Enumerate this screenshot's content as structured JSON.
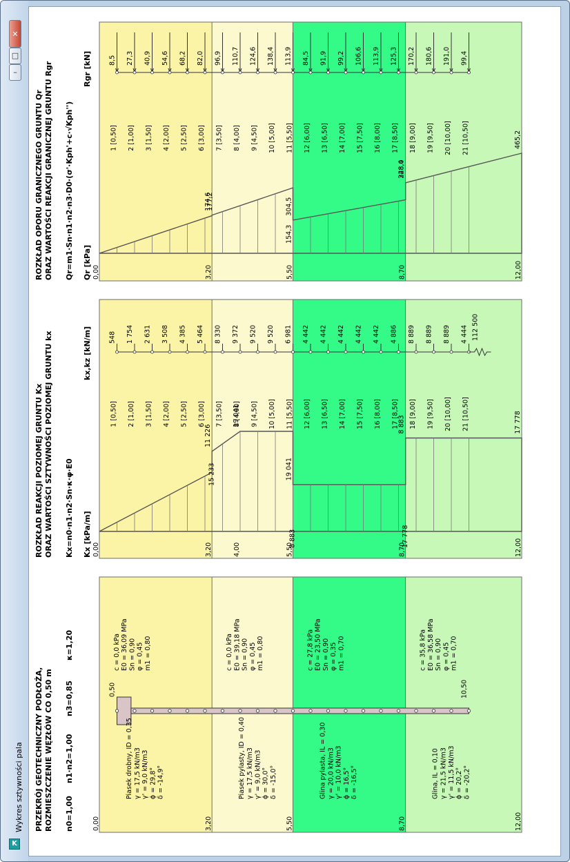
{
  "window": {
    "title": "Wykres sztywności pala",
    "icon_letter": "K"
  },
  "headers": {
    "h1_line1": "PRZEKRÓJ GEOTECHNICZNY PODŁOŻA,",
    "h1_line2": "ROZMIESZCZENIE WĘZŁÓW CO 0,50 m",
    "factors": [
      "n0=1,00",
      "n1·n2=1,00",
      "n3=0,85",
      "κ=1,20"
    ],
    "h2_line1": "ROZKŁAD REAKCJI POZIOMEJ GRUNTU Kx",
    "h2_line2": "ORAZ WARTOŚCI SZTYWNOŚCI POZIOMEJ GRUNTU kx",
    "h2_formula": "Kx=n0·n1·n2·Sn·κ·φ·E0",
    "h2_unit_left": "Kx [kPa/m]",
    "h2_unit_right": "kx,kz [kN/m]",
    "h3_line1": "ROZKŁAD OPORU GRANICZNEGO GRUNTU Qr",
    "h3_line2": "ORAZ WARTOŚCI REAKCJI GRANICZNEJ GRUNTU Rgr",
    "h3_formula": "Qr=m1·Sn·n1·n2·n3·D0·(σ'·Kph'+c·√Kph'')",
    "h3_unit_left": "Qr [kPa]",
    "h3_unit_right": "Rgr [kN]"
  },
  "colors": {
    "layer1": "#fbf3a6",
    "layer2": "#fdf9cf",
    "layer3": "#34fb87",
    "layer4": "#c8f8b8",
    "pile": "#d9c5c8"
  },
  "layers": [
    {
      "top": 0.0,
      "bottom": 3.2,
      "name": "Piasek drobny, ID = 0,35",
      "props": [
        "γ = 17,5 kN/m3",
        "γ' = 9,0 kN/m3",
        "ϕ = 29,8°",
        "δ = -14,9°"
      ],
      "params": [
        "c = 0,0 kPa",
        "E0 = 36,09 MPa",
        "Sn = 0,90",
        "φ = 0,45",
        "m1 = 0,80"
      ]
    },
    {
      "top": 3.2,
      "bottom": 5.5,
      "name": "Piasek pylasty, ID = 0,40",
      "props": [
        "γ = 17,5 kN/m3",
        "γ' = 9,0 kN/m3",
        "ϕ = 30,0°",
        "δ = -15,0°"
      ],
      "params": [
        "c = 0,0 kPa",
        "E0 = 39,18 MPa",
        "Sn = 0,90",
        "φ = 0,45",
        "m1 = 0,80"
      ]
    },
    {
      "top": 5.5,
      "bottom": 8.7,
      "name": "Glina pylasta, IL = 0,30",
      "props": [
        "γ = 20,0 kN/m3",
        "γ' = 10,0 kN/m3",
        "ϕ = 16,5°",
        "δ = -16,5°"
      ],
      "params": [
        "c = 27,8 kPa",
        "E0 = 23,50 MPa",
        "Sn = 0,90",
        "φ = 0,35",
        "m1 = 0,70"
      ]
    },
    {
      "top": 8.7,
      "bottom": 12.0,
      "name": "Glina, IL = 0,10",
      "props": [
        "γ = 21,5 kN/m3",
        "γ' = 11,5 kN/m3",
        "ϕ = 20,2°",
        "δ = -20,2°"
      ],
      "params": [
        "c = 35,8 kPa",
        "E0 = 36,58 MPa",
        "Sn = 0,90",
        "φ = 0,45",
        "m1 = 0,70"
      ]
    }
  ],
  "depth_labels_panel1": [
    "0,00",
    "3,20",
    "5,50",
    "8,70",
    "12,00"
  ],
  "depth_labels_panel2": [
    "0,00",
    "3,20",
    "4,00",
    "5,50",
    "8,70",
    "12,00"
  ],
  "depth_labels_panel3": [
    "0,00",
    "3,20",
    "5,50",
    "8,70",
    "12,00"
  ],
  "pile": {
    "head_label": "0,50",
    "tip_label": "10,50",
    "top": 0.5,
    "tip": 10.5
  },
  "chart_data": [
    {
      "type": "area",
      "title": "ROZKŁAD REAKCJI POZIOMEJ GRUNTU Kx",
      "ylabel": "Kx [kPa/m]",
      "x_unit": "depth [m]",
      "points": [
        [
          0.0,
          0
        ],
        [
          3.2,
          11226
        ],
        [
          3.2,
          15233
        ],
        [
          4.0,
          19041
        ],
        [
          5.5,
          19041
        ],
        [
          5.5,
          8883
        ],
        [
          8.7,
          8883
        ],
        [
          8.7,
          17778
        ],
        [
          12.0,
          17778
        ]
      ],
      "value_labels": [
        {
          "depth": 3.2,
          "text": "11 226"
        },
        {
          "depth": 3.3,
          "text": "15 233"
        },
        {
          "depth": 4.0,
          "text": "19 041"
        },
        {
          "depth": 5.5,
          "text": "19 041"
        },
        {
          "depth": 5.6,
          "text": "8 883"
        },
        {
          "depth": 8.7,
          "text": "8 883"
        },
        {
          "depth": 8.8,
          "text": "17 778"
        },
        {
          "depth": 12.0,
          "text": "17 778"
        }
      ]
    },
    {
      "type": "area",
      "title": "ROZKŁAD OPORU GRANICZNEGO GRUNTU Qr",
      "ylabel": "Qr [kPa]",
      "x_unit": "depth [m]",
      "points": [
        [
          0.0,
          0
        ],
        [
          3.2,
          174.6
        ],
        [
          3.2,
          177.2
        ],
        [
          5.5,
          304.5
        ],
        [
          5.5,
          154.3
        ],
        [
          8.7,
          248.4
        ],
        [
          8.7,
          328.0
        ],
        [
          12.0,
          465.2
        ]
      ],
      "value_labels": [
        {
          "depth": 3.2,
          "text": "174,6"
        },
        {
          "depth": 3.25,
          "text": "177,2"
        },
        {
          "depth": 5.5,
          "text": "304,5"
        },
        {
          "depth": 5.5,
          "text": "154,3"
        },
        {
          "depth": 8.7,
          "text": "248,4"
        },
        {
          "depth": 8.7,
          "text": "328,0"
        },
        {
          "depth": 12.0,
          "text": "465,2"
        }
      ]
    }
  ],
  "nodes": [
    {
      "n": "1",
      "d": 0.5,
      "label": "1 [0,50]",
      "kx": "548",
      "rgr": "8,5"
    },
    {
      "n": "2",
      "d": 1.0,
      "label": "2 [1,00]",
      "kx": "1 754",
      "rgr": "27,3"
    },
    {
      "n": "3",
      "d": 1.5,
      "label": "3 [1,50]",
      "kx": "2 631",
      "rgr": "40,9"
    },
    {
      "n": "4",
      "d": 2.0,
      "label": "4 [2,00]",
      "kx": "3 508",
      "rgr": "54,6"
    },
    {
      "n": "5",
      "d": 2.5,
      "label": "5 [2,50]",
      "kx": "4 385",
      "rgr": "68,2"
    },
    {
      "n": "6",
      "d": 3.0,
      "label": "6 [3,00]",
      "kx": "5 464",
      "rgr": "82,0"
    },
    {
      "n": "7",
      "d": 3.5,
      "label": "7 [3,50]",
      "kx": "8 330",
      "rgr": "96,9"
    },
    {
      "n": "8",
      "d": 4.0,
      "label": "8 [4,00]",
      "kx": "9 372",
      "rgr": "110,7"
    },
    {
      "n": "9",
      "d": 4.5,
      "label": "9 [4,50]",
      "kx": "9 520",
      "rgr": "124,6"
    },
    {
      "n": "10",
      "d": 5.0,
      "label": "10 [5,00]",
      "kx": "9 520",
      "rgr": "138,4"
    },
    {
      "n": "11",
      "d": 5.5,
      "label": "11 [5,50]",
      "kx": "6 981",
      "rgr": "113,9"
    },
    {
      "n": "12",
      "d": 6.0,
      "label": "12 [6,00]",
      "kx": "4 442",
      "rgr": "84,5"
    },
    {
      "n": "13",
      "d": 6.5,
      "label": "13 [6,50]",
      "kx": "4 442",
      "rgr": "91,9"
    },
    {
      "n": "14",
      "d": 7.0,
      "label": "14 [7,00]",
      "kx": "4 442",
      "rgr": "99,2"
    },
    {
      "n": "15",
      "d": 7.5,
      "label": "15 [7,50]",
      "kx": "4 442",
      "rgr": "106,6"
    },
    {
      "n": "16",
      "d": 8.0,
      "label": "16 [8,00]",
      "kx": "4 442",
      "rgr": "113,9"
    },
    {
      "n": "17",
      "d": 8.5,
      "label": "17 [8,50]",
      "kx": "4 886",
      "rgr": "125,3"
    },
    {
      "n": "18",
      "d": 9.0,
      "label": "18 [9,00]",
      "kx": "8 889",
      "rgr": "170,2"
    },
    {
      "n": "19",
      "d": 9.5,
      "label": "19 [9,50]",
      "kx": "8 889",
      "rgr": "180,6"
    },
    {
      "n": "20",
      "d": 10.0,
      "label": "20 [10,00]",
      "kx": "8 889",
      "rgr": "191,0"
    },
    {
      "n": "21",
      "d": 10.5,
      "label": "21 [10,50]",
      "kx": "4 444",
      "rgr": "99,4"
    }
  ],
  "kz_tip": "112 500"
}
